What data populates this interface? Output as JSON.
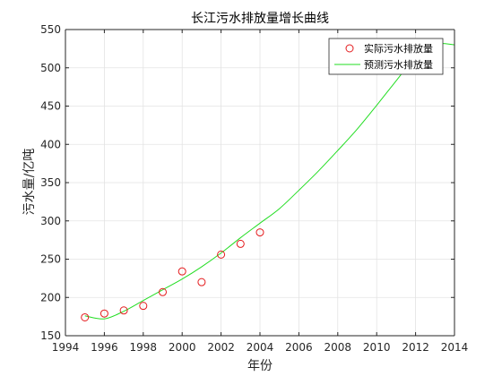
{
  "chart_data": {
    "type": "line",
    "title": "长江污水排放量增长曲线",
    "xlabel": "年份",
    "ylabel": "污水量/亿吨",
    "xlim": [
      1994,
      2014
    ],
    "ylim": [
      150,
      550
    ],
    "xticks": [
      1994,
      1996,
      1998,
      2000,
      2002,
      2004,
      2006,
      2008,
      2010,
      2012,
      2014
    ],
    "yticks": [
      150,
      200,
      250,
      300,
      350,
      400,
      450,
      500,
      550
    ],
    "grid": true,
    "legend_position": "top-right",
    "series": [
      {
        "name": "实际污水排放量",
        "kind": "scatter",
        "marker": "circle",
        "color": "#e41a1c",
        "x": [
          1995,
          1996,
          1997,
          1998,
          1999,
          2000,
          2001,
          2002,
          2003,
          2004
        ],
        "y": [
          174,
          179,
          183,
          189,
          207,
          234,
          220,
          256,
          270,
          285
        ]
      },
      {
        "name": "预测污水排放量",
        "kind": "line",
        "color": "#22dd22",
        "x": [
          1995,
          1996,
          1997,
          1998,
          1999,
          2000,
          2001,
          2002,
          2003,
          2004,
          2005,
          2006,
          2007,
          2008,
          2009,
          2010,
          2011,
          2012,
          2013,
          2014
        ],
        "y": [
          176,
          172,
          182,
          196,
          210,
          224,
          240,
          258,
          278,
          297,
          316,
          340,
          365,
          392,
          420,
          451,
          483,
          514,
          531,
          530
        ]
      }
    ]
  }
}
